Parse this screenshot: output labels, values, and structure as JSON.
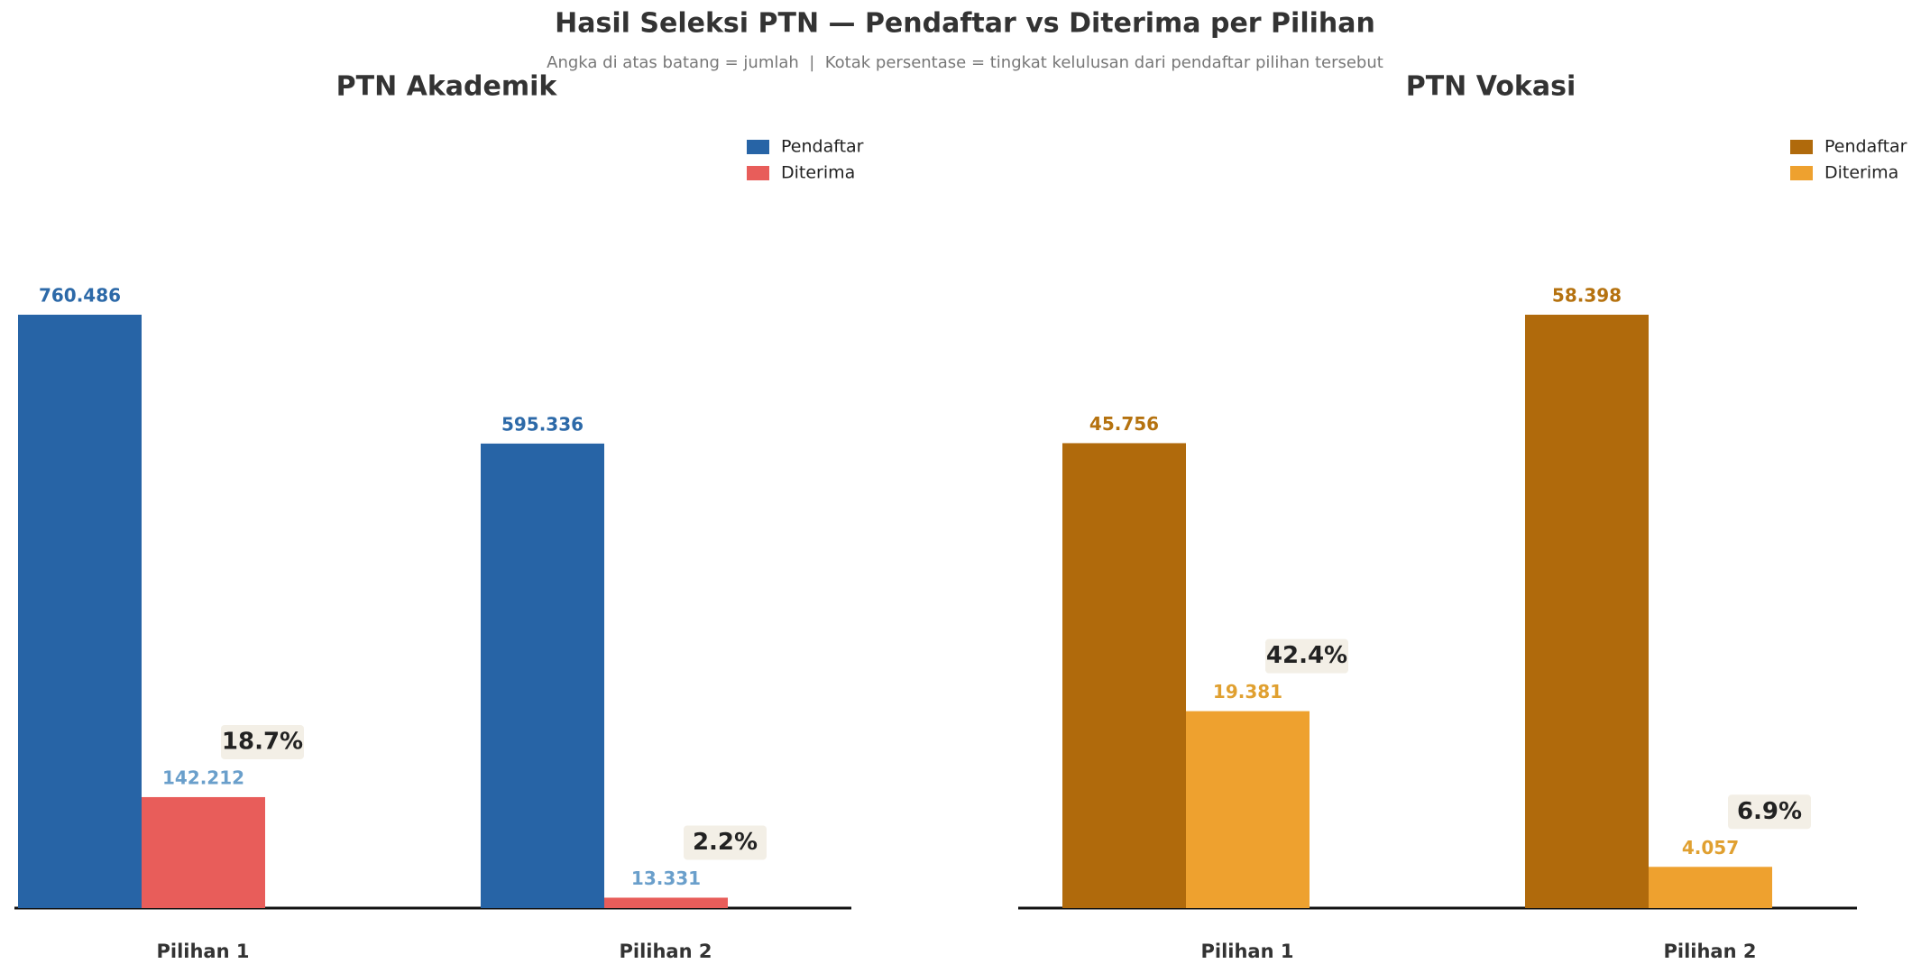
{
  "title": "Hasil Seleksi PTN — Pendaftar vs Diterima per Pilihan",
  "subtitle": "Angka di atas batang = jumlah  |  Kotak persentase = tingkat kelulusan dari pendaftar pilihan tersebut",
  "chart_data": [
    {
      "type": "bar",
      "title": "PTN Akademik",
      "categories": [
        "Pilihan 1",
        "Pilihan 2"
      ],
      "legend": "upper right",
      "series": [
        {
          "name": "Pendaftar",
          "color": "#2764a6",
          "label_color": "#2c69a8",
          "values": [
            760486,
            595336
          ],
          "value_labels": [
            "760.486",
            "595.336"
          ]
        },
        {
          "name": "Diterima",
          "color": "#e85d5a",
          "label_color": "#6a9fcb",
          "values": [
            142212,
            13331
          ],
          "value_labels": [
            "142.212",
            "13.331"
          ]
        }
      ],
      "rates": [
        18.7,
        2.2
      ],
      "rate_labels": [
        "18.7%",
        "2.2%"
      ]
    },
    {
      "type": "bar",
      "title": "PTN Vokasi",
      "categories": [
        "Pilihan 1",
        "Pilihan 2"
      ],
      "legend": "upper right",
      "series": [
        {
          "name": "Pendaftar",
          "color": "#b06a0c",
          "label_color": "#b5720f",
          "values": [
            45756,
            58398
          ],
          "value_labels": [
            "45.756",
            "58.398"
          ]
        },
        {
          "name": "Diterima",
          "color": "#eea12f",
          "label_color": "#e0a030",
          "values": [
            19381,
            4057
          ],
          "value_labels": [
            "19.381",
            "4.057"
          ]
        }
      ],
      "rates": [
        42.4,
        6.9
      ],
      "rate_labels": [
        "42.4%",
        "6.9%"
      ]
    }
  ]
}
